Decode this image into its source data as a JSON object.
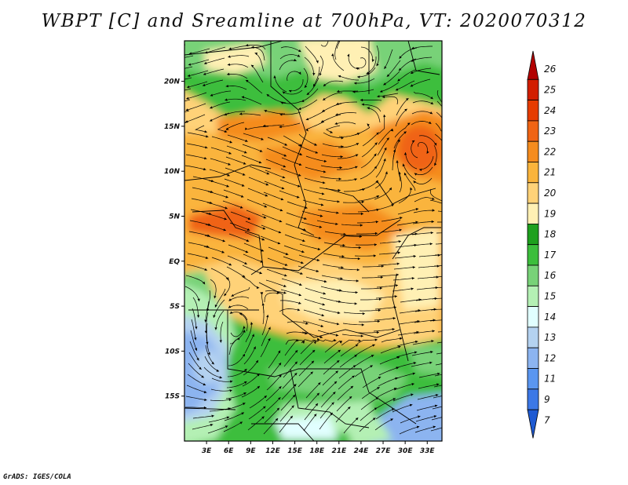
{
  "title": "WBPT [C] and Sreamline at 700hPa, VT: 2020070312",
  "footer": "GrADS: IGES/COLA",
  "map": {
    "lon_range": [
      0,
      35
    ],
    "lat_range": [
      -20,
      24.5
    ],
    "lon_ticks": [
      {
        "value": 3,
        "label": "3E"
      },
      {
        "value": 6,
        "label": "6E"
      },
      {
        "value": 9,
        "label": "9E"
      },
      {
        "value": 12,
        "label": "12E"
      },
      {
        "value": 15,
        "label": "15E"
      },
      {
        "value": 18,
        "label": "18E"
      },
      {
        "value": 21,
        "label": "21E"
      },
      {
        "value": 24,
        "label": "24E"
      },
      {
        "value": 27,
        "label": "27E"
      },
      {
        "value": 30,
        "label": "30E"
      },
      {
        "value": 33,
        "label": "33E"
      }
    ],
    "lat_ticks": [
      {
        "value": 20,
        "label": "20N"
      },
      {
        "value": 15,
        "label": "15N"
      },
      {
        "value": 10,
        "label": "10N"
      },
      {
        "value": 5,
        "label": "5N"
      },
      {
        "value": 0,
        "label": "EQ"
      },
      {
        "value": -5,
        "label": "5S"
      },
      {
        "value": -10,
        "label": "10S"
      },
      {
        "value": -15,
        "label": "15S"
      }
    ]
  },
  "colorbar": {
    "levels": [
      "26",
      "25",
      "24",
      "23",
      "22",
      "21",
      "20",
      "19",
      "18",
      "17",
      "16",
      "15",
      "14",
      "13",
      "12",
      "11",
      "9",
      "7"
    ],
    "colors": [
      "#b20000",
      "#d21e00",
      "#e63c00",
      "#f06414",
      "#f58c1e",
      "#fab43c",
      "#ffd278",
      "#fff0b4",
      "#1ea01e",
      "#3cbe3c",
      "#78d278",
      "#b4f0b4",
      "#e1ffff",
      "#b4d2f0",
      "#8cb4f0",
      "#5a96f0",
      "#3c78e6",
      "#1e5ad2"
    ]
  }
}
